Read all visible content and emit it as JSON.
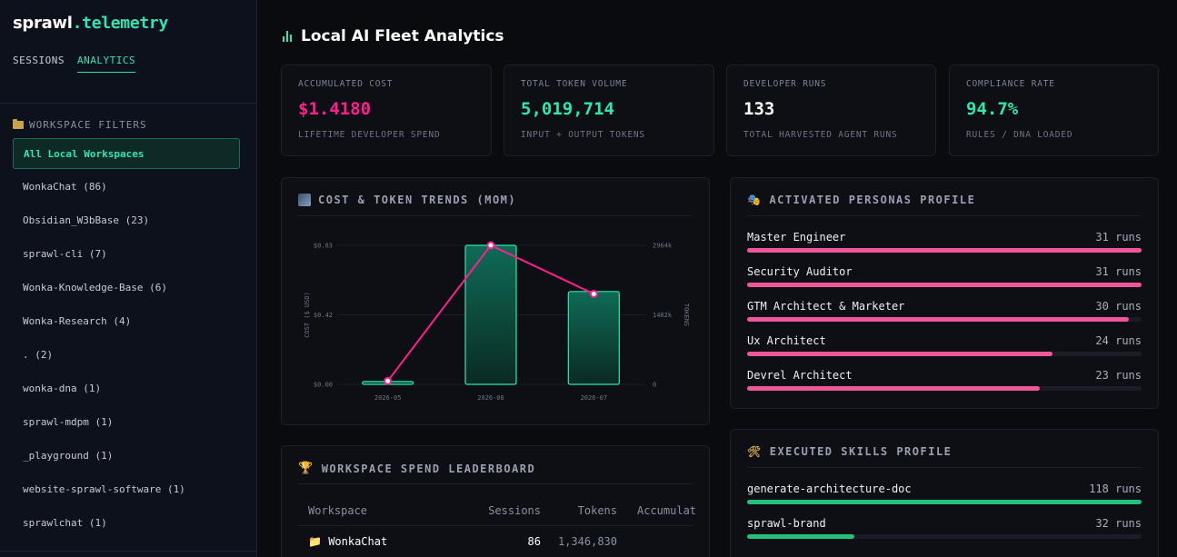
{
  "brand": {
    "name": "sprawl",
    "suffix": ".telemetry"
  },
  "topnav": [
    {
      "label": "SESSIONS",
      "active": false
    },
    {
      "label": "ANALYTICS",
      "active": true
    }
  ],
  "sidebar": {
    "filters_title": "WORKSPACE FILTERS",
    "items": [
      {
        "label": "All Local Workspaces",
        "active": true
      },
      {
        "label": "WonkaChat (86)"
      },
      {
        "label": "Obsidian_W3bBase (23)"
      },
      {
        "label": "sprawl-cli (7)"
      },
      {
        "label": "Wonka-Knowledge-Base (6)"
      },
      {
        "label": "Wonka-Research (4)"
      },
      {
        "label": ". (2)"
      },
      {
        "label": "wonka-dna (1)"
      },
      {
        "label": "sprawl-mdpm (1)"
      },
      {
        "label": "_playground (1)"
      },
      {
        "label": "website-sprawl-software (1)"
      },
      {
        "label": "sprawlchat (1)"
      }
    ]
  },
  "page": {
    "title": "Local AI Fleet Analytics"
  },
  "stats": [
    {
      "label": "ACCUMULATED COST",
      "value": "$1.4180",
      "sub": "LIFETIME DEVELOPER SPEND",
      "color": "#ff1f8e"
    },
    {
      "label": "TOTAL TOKEN VOLUME",
      "value": "5,019,714",
      "sub": "INPUT + OUTPUT TOKENS",
      "color": "#2ee6b0"
    },
    {
      "label": "DEVELOPER RUNS",
      "value": "133",
      "sub": "TOTAL HARVESTED AGENT RUNS",
      "color": "#ffffff"
    },
    {
      "label": "COMPLIANCE RATE",
      "value": "94.7%",
      "sub": "RULES / DNA LOADED",
      "color": "#2ee6b0"
    }
  ],
  "trends": {
    "title": "COST & TOKEN TRENDS (MOM)",
    "icon": "chart-icon"
  },
  "chart_data": {
    "type": "bar",
    "title": "COST & TOKEN TRENDS (MOM)",
    "categories": [
      "2026-05",
      "2026-06",
      "2026-07"
    ],
    "series": [
      {
        "type": "bar",
        "axis": "right",
        "values": [
          60,
          2964,
          1980
        ],
        "color": "#2ee6b0"
      },
      {
        "type": "line",
        "axis": "left",
        "values": [
          0.02,
          0.83,
          0.54
        ],
        "color": "#ff1f8e"
      }
    ],
    "y_left": {
      "label": "COST ($ USD)",
      "ticks": [
        "$0.00",
        "$0.42",
        "$0.83"
      ],
      "range": [
        0,
        0.83
      ]
    },
    "y_right": {
      "label": "TOKENS",
      "ticks": [
        "0",
        "1482k",
        "2964k"
      ],
      "range": [
        0,
        2964
      ]
    },
    "grid": true
  },
  "personas": {
    "title": "ACTIVATED PERSONAS PROFILE",
    "max": 31,
    "items": [
      {
        "name": "Master Engineer",
        "runs": "31 runs",
        "count": 31
      },
      {
        "name": "Security Auditor",
        "runs": "31 runs",
        "count": 31
      },
      {
        "name": "GTM Architect & Marketer",
        "runs": "30 runs",
        "count": 30
      },
      {
        "name": "Ux Architect",
        "runs": "24 runs",
        "count": 24
      },
      {
        "name": "Devrel Architect",
        "runs": "23 runs",
        "count": 23
      }
    ],
    "color": "#f0569a"
  },
  "skills": {
    "title": "EXECUTED SKILLS PROFILE",
    "max": 118,
    "items": [
      {
        "name": "generate-architecture-doc",
        "runs": "118 runs",
        "count": 118
      },
      {
        "name": "sprawl-brand",
        "runs": "32 runs",
        "count": 32
      }
    ],
    "color": "#26c07e"
  },
  "leaderboard": {
    "title": "WORKSPACE SPEND LEADERBOARD",
    "headers": {
      "workspace": "Workspace",
      "sessions": "Sessions",
      "tokens": "Tokens",
      "cost": "Accumulat"
    },
    "rows": [
      {
        "workspace": "WonkaChat",
        "sessions": "86",
        "tokens": "1,346,830"
      }
    ]
  }
}
